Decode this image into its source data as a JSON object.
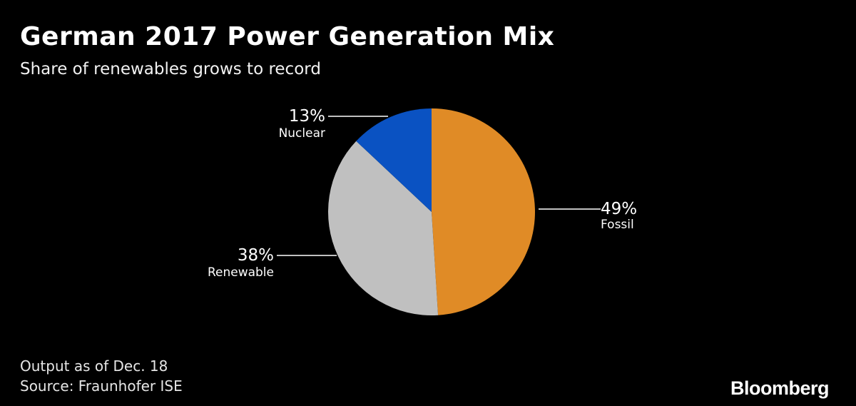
{
  "header": {
    "title": "German 2017 Power Generation Mix",
    "subtitle": "Share of renewables grows to record"
  },
  "chart_data": {
    "type": "pie",
    "title": "German 2017 Power Generation Mix",
    "subtitle": "Share of renewables grows to record",
    "slices": [
      {
        "label": "Fossil",
        "value": 49,
        "value_label": "49%",
        "color": "#e08b26"
      },
      {
        "label": "Renewable",
        "value": 38,
        "value_label": "38%",
        "color": "#c0c0c0"
      },
      {
        "label": "Nuclear",
        "value": 13,
        "value_label": "13%",
        "color": "#0a52c2"
      }
    ],
    "start": "12 o'clock",
    "direction": "clockwise"
  },
  "footer": {
    "note": "Output as of Dec. 18",
    "source": "Source: Fraunhofer ISE",
    "brand": "Bloomberg"
  }
}
